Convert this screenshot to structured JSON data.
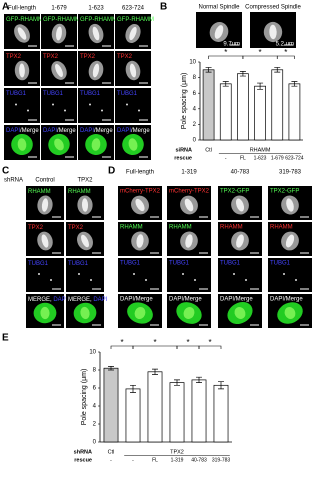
{
  "panels": {
    "A": {
      "label": "A",
      "columns": [
        "Full-length",
        "1-679",
        "1-623",
        "623-724"
      ],
      "rows": [
        [
          "GFP-RHAMM"
        ],
        [
          "TPX2"
        ],
        [
          "TUBG1"
        ],
        [
          "DAPI",
          "/Merge"
        ]
      ]
    },
    "B": {
      "label": "B",
      "images": [
        "Normal Spindle",
        "Compressed Spindle"
      ],
      "measures": [
        "9.7um",
        "5.2 um"
      ]
    },
    "C": {
      "label": "C",
      "header": "shRNA",
      "columns": [
        "Control",
        "TPX2"
      ],
      "rows": [
        [
          "RHAMM"
        ],
        [
          "TPX2"
        ],
        [
          "TUBG1"
        ],
        [
          "MERGE, ",
          "DAPI"
        ]
      ]
    },
    "D": {
      "label": "D",
      "columns": [
        "Full-length",
        "1-319",
        "40-783",
        "319-783"
      ],
      "rows": [
        [
          "mCherry-TPX2",
          "mCherry-TPX2",
          "TPX2-GFP",
          "TPX2-GFP"
        ],
        [
          "RHAMM",
          "RHAMM",
          "RHAMM",
          "RHAMM"
        ],
        [
          "TUBG1",
          "TUBG1",
          "TUBG1",
          "TUBG1"
        ],
        [
          "DAPI/Merge",
          "DAPI/Merge",
          "DAPI/Merge",
          "DAPI/Merge"
        ]
      ]
    },
    "E": {
      "label": "E"
    }
  },
  "chart_data": [
    {
      "type": "bar",
      "ylabel": "Pole spacing (μm)",
      "group_label": "siRNA",
      "groups": [
        "Ctl",
        "RHAMM"
      ],
      "category_label": "rescue",
      "categories": [
        null,
        "-",
        "FL",
        "1-623",
        "1-679",
        "623-724"
      ],
      "values": [
        9.0,
        7.2,
        8.5,
        6.9,
        9.0,
        7.2
      ],
      "errors": [
        0.3,
        0.3,
        0.3,
        0.4,
        0.3,
        0.3
      ],
      "colors": [
        "#c8c8c8",
        "#ffffff",
        "#ffffff",
        "#ffffff",
        "#ffffff",
        "#ffffff"
      ],
      "ylim": [
        0,
        10
      ],
      "yticks": [
        0,
        2,
        4,
        6,
        8,
        10
      ],
      "annotations": [
        "*",
        "*",
        "*"
      ]
    },
    {
      "type": "bar",
      "ylabel": "Pole spacing (μm)",
      "group_label": "shRNA",
      "groups": [
        "Ctl",
        "TPX2"
      ],
      "category_label": "rescue",
      "categories": [
        "-",
        "-",
        "FL",
        "1-319",
        "40-783",
        "319-783"
      ],
      "values": [
        8.2,
        5.9,
        7.8,
        6.6,
        6.9,
        6.3
      ],
      "errors": [
        0.2,
        0.4,
        0.3,
        0.3,
        0.3,
        0.4
      ],
      "colors": [
        "#c8c8c8",
        "#ffffff",
        "#ffffff",
        "#ffffff",
        "#ffffff",
        "#ffffff"
      ],
      "ylim": [
        0,
        10
      ],
      "yticks": [
        0,
        2,
        4,
        6,
        8,
        10
      ],
      "annotations": [
        "*",
        "*",
        "*",
        "*"
      ]
    }
  ]
}
